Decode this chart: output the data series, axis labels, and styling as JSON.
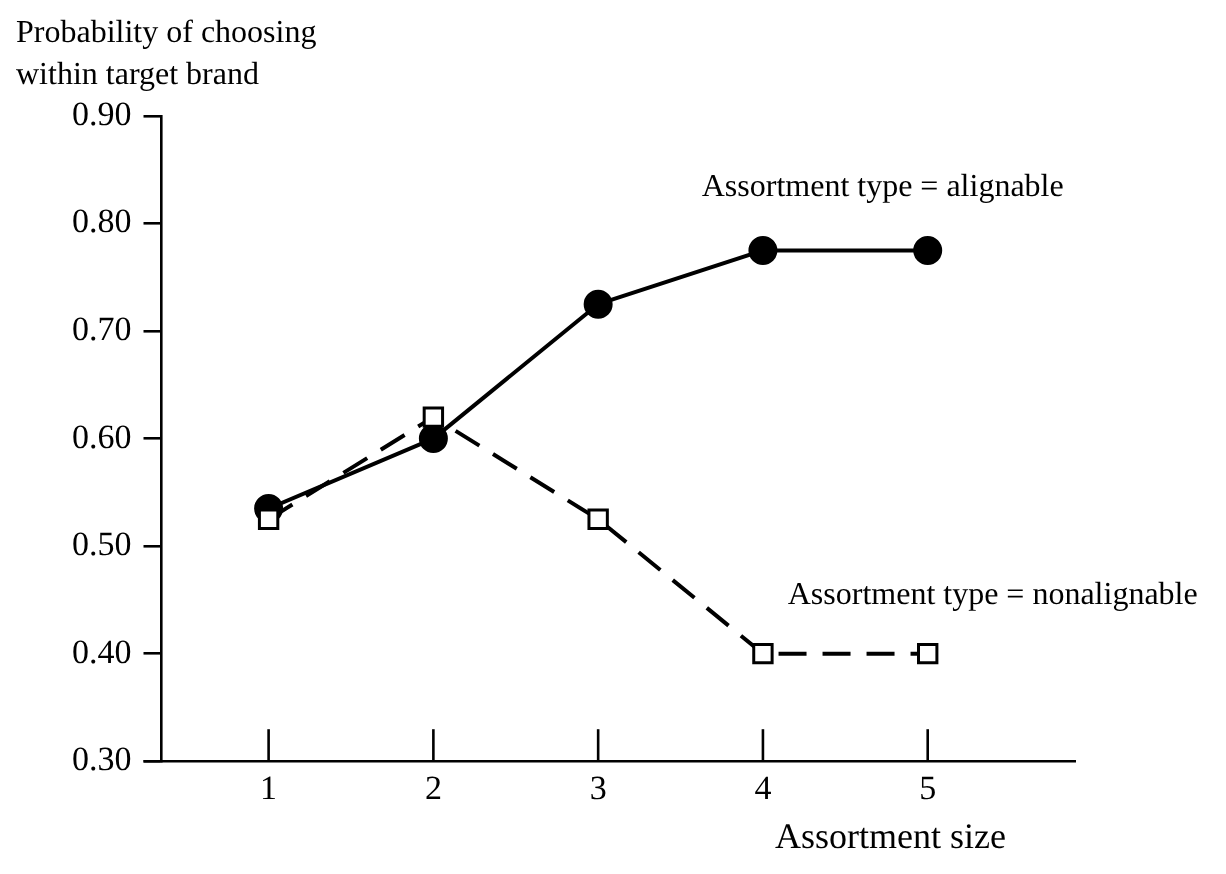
{
  "chart_data": {
    "type": "line",
    "ylabel": "Probability of choosing within target brand",
    "xlabel": "Assortment size",
    "x": [
      1,
      2,
      3,
      4,
      5
    ],
    "xlim": [
      0.35,
      5.9
    ],
    "xticks": [
      1,
      2,
      3,
      4,
      5
    ],
    "ylim": [
      0.3,
      0.9
    ],
    "yticks": [
      {
        "value": 0.3,
        "label": "0.30"
      },
      {
        "value": 0.4,
        "label": "0.40"
      },
      {
        "value": 0.5,
        "label": "0.50"
      },
      {
        "value": 0.6,
        "label": "0.60"
      },
      {
        "value": 0.7,
        "label": "0.70"
      },
      {
        "value": 0.8,
        "label": "0.80"
      },
      {
        "value": 0.9,
        "label": "0.90"
      }
    ],
    "grid": false,
    "legend": false,
    "series": [
      {
        "name": "Assortment type = alignable",
        "color": "#000000",
        "marker": "circle",
        "line_style": "solid",
        "values": [
          0.535,
          0.6,
          0.725,
          0.775,
          0.775
        ]
      },
      {
        "name": "Assortment type = nonalignable",
        "color": "#000000",
        "marker": "square",
        "line_style": "dashed",
        "values": [
          0.525,
          0.62,
          0.525,
          0.4,
          0.4
        ]
      }
    ]
  }
}
